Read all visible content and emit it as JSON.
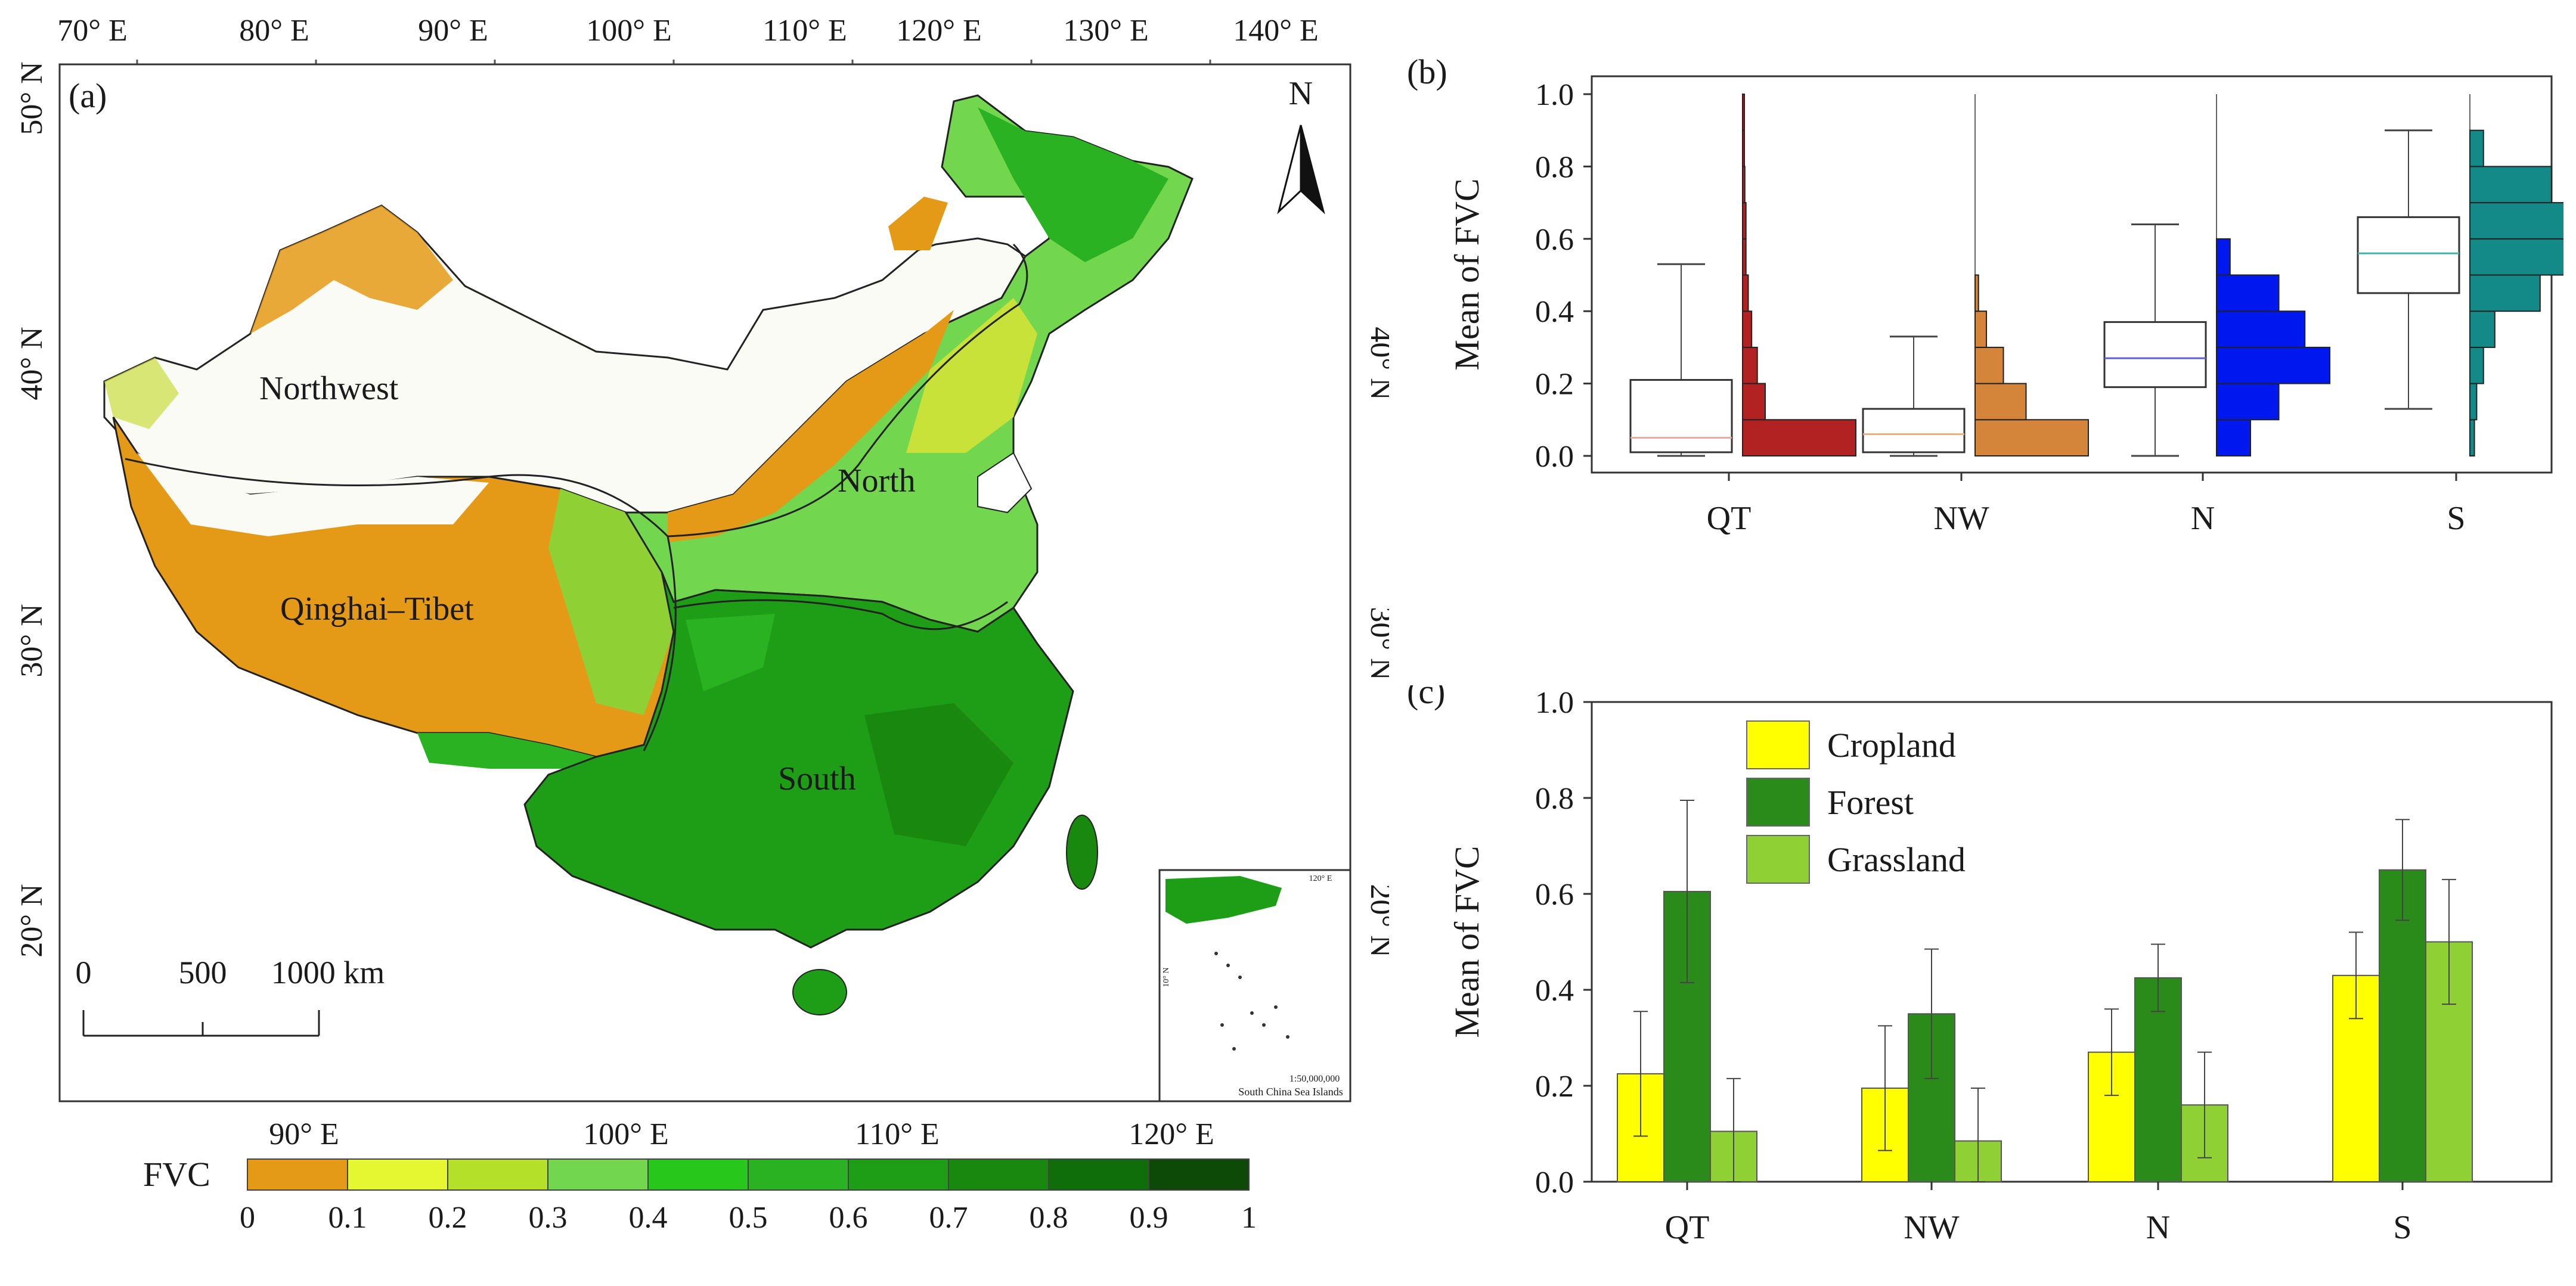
{
  "panel_a": {
    "label": "(a)",
    "top_lon_ticks": [
      "70° E",
      "80° E",
      "90° E",
      "100° E",
      "110° E",
      "120° E",
      "130° E",
      "140° E"
    ],
    "bottom_lon_ticks": [
      "90° E",
      "100° E",
      "110° E",
      "120° E"
    ],
    "left_lat_ticks": [
      "50° N",
      "40° N",
      "30° N",
      "20° N"
    ],
    "right_lat_ticks": [
      "40° N",
      "30° N",
      "20° N"
    ],
    "north_arrow": "N",
    "regions": [
      "Northwest",
      "North",
      "Qinghai–Tibet",
      "South"
    ],
    "scale_bar": {
      "labels": [
        "0",
        "500",
        "1000 km"
      ]
    },
    "inset": {
      "tick_top": "120° E",
      "tick_left": "10° N",
      "scale": "1:50,000,000",
      "caption": "South China Sea Islands"
    },
    "legend": {
      "title": "FVC",
      "ticks": [
        "0",
        "0.1",
        "0.2",
        "0.3",
        "0.4",
        "0.5",
        "0.6",
        "0.7",
        "0.8",
        "0.9",
        "1"
      ],
      "colors": [
        "#e59a17",
        "#e4f731",
        "#b5e02a",
        "#72d64f",
        "#27c71c",
        "#2ab222",
        "#1d9e16",
        "#18880f",
        "#0f6e0a",
        "#0d4a08",
        "#050505"
      ]
    }
  },
  "chart_data": [
    {
      "id": "b",
      "type": "box",
      "label": "(b)",
      "ylabel": "Mean of FVC",
      "ylim": [
        0,
        1.0
      ],
      "yticks": [
        "0.0",
        "0.2",
        "0.4",
        "0.6",
        "0.8",
        "1.0"
      ],
      "categories": [
        "QT",
        "NW",
        "N",
        "S"
      ],
      "boxes": [
        {
          "name": "QT",
          "min": 0.0,
          "q1": 0.01,
          "median": 0.05,
          "q3": 0.21,
          "max": 0.53,
          "whisker_extra": 1.0,
          "median_color": "#e8a8a0"
        },
        {
          "name": "NW",
          "min": 0.0,
          "q1": 0.01,
          "median": 0.06,
          "q3": 0.13,
          "max": 0.33,
          "whisker_extra": 1.0,
          "median_color": "#e8b080"
        },
        {
          "name": "N",
          "min": 0.0,
          "q1": 0.19,
          "median": 0.27,
          "q3": 0.37,
          "max": 0.64,
          "whisker_extra": 1.0,
          "median_color": "#6060d0"
        },
        {
          "name": "S",
          "min": 0.13,
          "q1": 0.45,
          "median": 0.56,
          "q3": 0.66,
          "max": 0.9,
          "whisker_extra": 1.0,
          "median_color": "#40b0a8"
        }
      ],
      "histograms": [
        {
          "name": "QT",
          "color": "#b22222",
          "bins": [
            [
              0.0,
              0.1,
              1.0
            ],
            [
              0.1,
              0.2,
              0.2
            ],
            [
              0.2,
              0.3,
              0.13
            ],
            [
              0.3,
              0.4,
              0.08
            ],
            [
              0.4,
              0.5,
              0.05
            ],
            [
              0.5,
              0.6,
              0.03
            ],
            [
              0.6,
              0.7,
              0.03
            ],
            [
              0.7,
              0.8,
              0.02
            ],
            [
              0.8,
              0.9,
              0.01
            ],
            [
              0.9,
              1.0,
              0.005
            ]
          ]
        },
        {
          "name": "NW",
          "color": "#d4853a",
          "bins": [
            [
              0.0,
              0.1,
              1.0
            ],
            [
              0.1,
              0.2,
              0.45
            ],
            [
              0.2,
              0.3,
              0.25
            ],
            [
              0.3,
              0.4,
              0.1
            ],
            [
              0.4,
              0.5,
              0.03
            ]
          ]
        },
        {
          "name": "N",
          "color": "#0018f0",
          "bins": [
            [
              0.0,
              0.1,
              0.3
            ],
            [
              0.1,
              0.2,
              0.55
            ],
            [
              0.2,
              0.3,
              1.0
            ],
            [
              0.3,
              0.4,
              0.78
            ],
            [
              0.4,
              0.5,
              0.55
            ],
            [
              0.5,
              0.6,
              0.12
            ]
          ]
        },
        {
          "name": "S",
          "color": "#148a88",
          "bins": [
            [
              0.0,
              0.1,
              0.04
            ],
            [
              0.1,
              0.2,
              0.06
            ],
            [
              0.2,
              0.3,
              0.12
            ],
            [
              0.3,
              0.4,
              0.22
            ],
            [
              0.4,
              0.5,
              0.62
            ],
            [
              0.5,
              0.6,
              0.85
            ],
            [
              0.6,
              0.7,
              1.0
            ],
            [
              0.7,
              0.8,
              0.72
            ],
            [
              0.8,
              0.9,
              0.12
            ]
          ]
        }
      ]
    },
    {
      "id": "c",
      "type": "bar",
      "label": "(c)",
      "ylabel": "Mean of FVC",
      "ylim": [
        0,
        1.0
      ],
      "yticks": [
        "0.0",
        "0.2",
        "0.4",
        "0.6",
        "0.8",
        "1.0"
      ],
      "categories": [
        "QT",
        "NW",
        "N",
        "S"
      ],
      "series": [
        {
          "name": "Cropland",
          "color": "#ffff00",
          "values": [
            0.225,
            0.195,
            0.27,
            0.43
          ],
          "errors": [
            0.13,
            0.13,
            0.09,
            0.09
          ]
        },
        {
          "name": "Forest",
          "color": "#2a8a1a",
          "values": [
            0.605,
            0.35,
            0.425,
            0.65
          ],
          "errors": [
            0.19,
            0.135,
            0.07,
            0.105
          ]
        },
        {
          "name": "Grassland",
          "color": "#8fd134",
          "values": [
            0.105,
            0.085,
            0.16,
            0.5
          ],
          "errors": [
            0.11,
            0.11,
            0.11,
            0.13
          ]
        }
      ]
    }
  ]
}
